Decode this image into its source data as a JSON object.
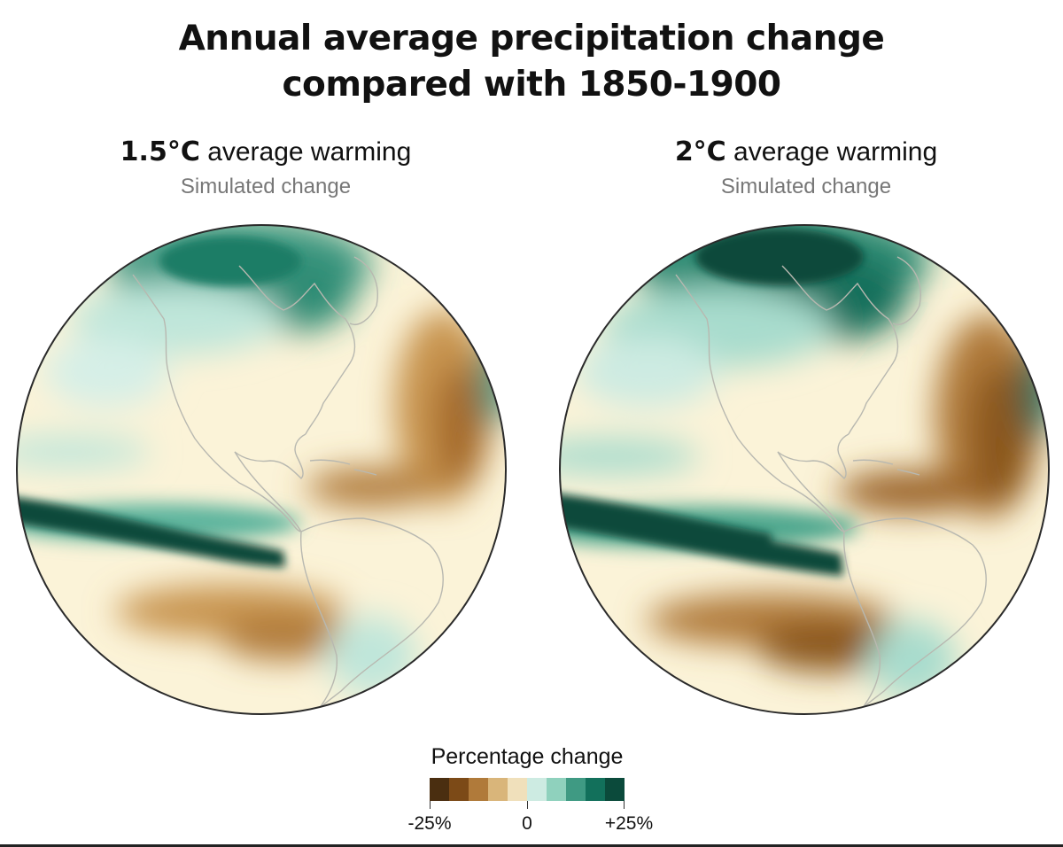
{
  "title": {
    "line1": "Annual average precipitation change",
    "line2": "compared with 1850-1900"
  },
  "panels": [
    {
      "warming": "1.5°C",
      "warming_suffix": "average warming",
      "subtitle": "Simulated change"
    },
    {
      "warming": "2°C",
      "warming_suffix": "average warming",
      "subtitle": "Simulated change"
    }
  ],
  "legend": {
    "title": "Percentage change",
    "colors": [
      "#4a2e10",
      "#7c4a17",
      "#b07a3a",
      "#d9b57a",
      "#f0e0bb",
      "#cdebe2",
      "#8fd1bd",
      "#3f9a83",
      "#12705b",
      "#0b4a3b"
    ],
    "labels": {
      "min": "-25%",
      "mid": "0",
      "max": "+25%"
    }
  },
  "colors": {
    "ocean_base": "#fbf3d8",
    "wet_strong": "#0b4a3b",
    "wet_mid": "#2f8c74",
    "wet_light": "#bfe6da",
    "dry_strong": "#8a561d",
    "dry_mid": "#c8944f",
    "land_outline": "#b8b8b0",
    "globe_outline": "#2a2a2a"
  }
}
